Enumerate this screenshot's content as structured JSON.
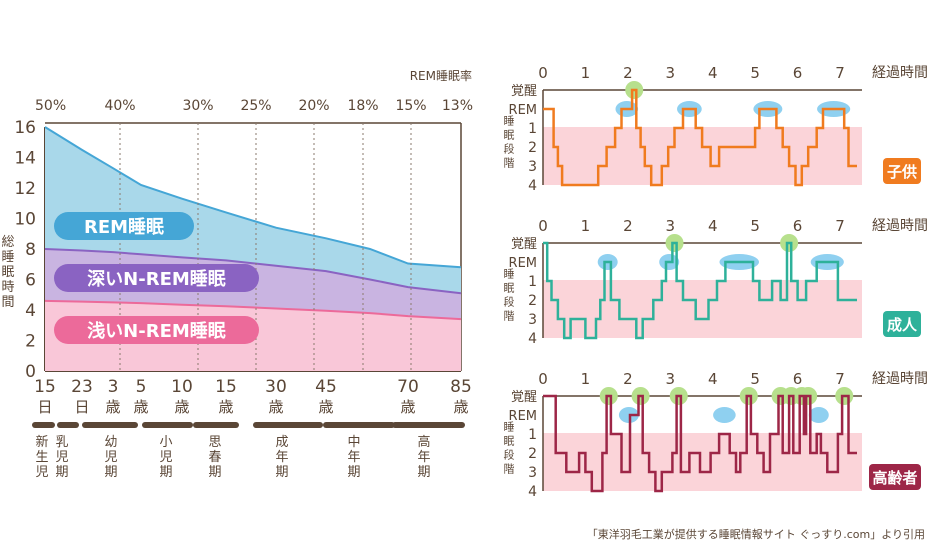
{
  "colors": {
    "rem": "#a9d8ea",
    "deep": "#c9b4e1",
    "light": "#f9c7d8",
    "rem_line": "#45a6d6",
    "deep_line": "#8a63c2",
    "light_line": "#ec6a9a",
    "axis": "#5a4636",
    "child": "#f07b1f",
    "adult": "#2eb19a",
    "elderly": "#9d2647",
    "sleep_band": "#fbd4d9",
    "green_mark": "#b7e08d",
    "blue_mark": "#8fd0f0"
  },
  "chart_data": [
    {
      "type": "area",
      "stacked": true,
      "ylabel": "総睡眠時間",
      "ylim": [
        0,
        16
      ],
      "y_ticks": [
        "0",
        "2",
        "4",
        "6",
        "8",
        "10",
        "12",
        "14",
        "16"
      ],
      "top_axis_title": "REM睡眠率",
      "rem_rate_labels": [
        "50%",
        "40%",
        "30%",
        "25%",
        "20%",
        "18%",
        "15%",
        "13%"
      ],
      "age_labels": [
        "15日",
        "23日",
        "3歳",
        "5歳",
        "10歳",
        "15歳",
        "30歳",
        "45歳",
        "70歳",
        "85歳"
      ],
      "life_stages": [
        "新生児",
        "乳児期",
        "幼児期",
        "小児期",
        "思春期",
        "成年期",
        "中年期",
        "高年期"
      ],
      "series": [
        {
          "name": "浅いN-REM睡眠",
          "values": [
            4.6,
            4.55,
            4.5,
            4.45,
            4.35,
            4.25,
            4.1,
            3.95,
            3.8,
            3.6,
            3.4
          ]
        },
        {
          "name": "深いN-REM睡眠",
          "values": [
            3.4,
            3.35,
            3.3,
            3.2,
            3.1,
            3.0,
            2.8,
            2.6,
            2.2,
            1.9,
            1.7
          ]
        },
        {
          "name": "REM睡眠",
          "values": [
            8.0,
            6.6,
            5.5,
            4.55,
            3.85,
            3.15,
            2.5,
            2.15,
            2.0,
            1.55,
            1.7
          ]
        }
      ]
    },
    {
      "type": "line",
      "xlabel": "経過時間",
      "x_ticks": [
        "0",
        "1",
        "2",
        "3",
        "4",
        "5",
        "6",
        "7"
      ],
      "y_categories": [
        "覚醒",
        "REM",
        "1",
        "2",
        "3",
        "4"
      ],
      "y_side_label": "睡眠段階",
      "panels": [
        {
          "label": "子供",
          "points": [
            [
              0,
              1
            ],
            [
              0.25,
              1
            ],
            [
              0.25,
              3
            ],
            [
              0.35,
              3
            ],
            [
              0.35,
              4
            ],
            [
              0.45,
              4
            ],
            [
              0.45,
              5
            ],
            [
              1.3,
              5
            ],
            [
              1.3,
              4
            ],
            [
              1.5,
              4
            ],
            [
              1.5,
              3
            ],
            [
              1.7,
              3
            ],
            [
              1.7,
              2
            ],
            [
              1.85,
              2
            ],
            [
              1.85,
              1
            ],
            [
              2.1,
              1
            ],
            [
              2.1,
              0
            ],
            [
              2.2,
              0
            ],
            [
              2.2,
              2
            ],
            [
              2.3,
              2
            ],
            [
              2.3,
              3
            ],
            [
              2.4,
              3
            ],
            [
              2.4,
              4
            ],
            [
              2.55,
              4
            ],
            [
              2.55,
              5
            ],
            [
              2.8,
              5
            ],
            [
              2.8,
              4
            ],
            [
              2.95,
              4
            ],
            [
              2.95,
              3
            ],
            [
              3.1,
              3
            ],
            [
              3.1,
              2
            ],
            [
              3.3,
              2
            ],
            [
              3.3,
              1
            ],
            [
              3.6,
              1
            ],
            [
              3.6,
              2
            ],
            [
              3.75,
              2
            ],
            [
              3.75,
              3
            ],
            [
              3.95,
              3
            ],
            [
              3.95,
              4
            ],
            [
              4.15,
              4
            ],
            [
              4.15,
              3
            ],
            [
              5.0,
              3
            ],
            [
              5.0,
              2
            ],
            [
              5.1,
              2
            ],
            [
              5.1,
              1
            ],
            [
              5.5,
              1
            ],
            [
              5.5,
              2
            ],
            [
              5.65,
              2
            ],
            [
              5.65,
              3
            ],
            [
              5.8,
              3
            ],
            [
              5.8,
              4
            ],
            [
              5.95,
              4
            ],
            [
              5.95,
              5
            ],
            [
              6.1,
              5
            ],
            [
              6.1,
              4
            ],
            [
              6.25,
              4
            ],
            [
              6.25,
              3
            ],
            [
              6.45,
              3
            ],
            [
              6.45,
              2
            ],
            [
              6.6,
              2
            ],
            [
              6.6,
              1
            ],
            [
              7.1,
              1
            ],
            [
              7.1,
              2
            ],
            [
              7.2,
              2
            ],
            [
              7.2,
              4
            ],
            [
              7.4,
              4
            ]
          ],
          "rem_markers": [
            [
              1.85,
              2.1
            ],
            [
              3.3,
              3.6
            ],
            [
              5.1,
              5.5
            ],
            [
              6.6,
              7.1
            ]
          ],
          "wake_markers": [
            2.15
          ]
        },
        {
          "label": "成人",
          "points": [
            [
              0,
              0
            ],
            [
              0.1,
              0
            ],
            [
              0.1,
              2
            ],
            [
              0.2,
              2
            ],
            [
              0.2,
              3
            ],
            [
              0.35,
              3
            ],
            [
              0.35,
              4
            ],
            [
              0.5,
              4
            ],
            [
              0.5,
              5
            ],
            [
              0.65,
              5
            ],
            [
              0.65,
              4
            ],
            [
              1.0,
              4
            ],
            [
              1.0,
              5
            ],
            [
              1.25,
              5
            ],
            [
              1.25,
              4
            ],
            [
              1.35,
              4
            ],
            [
              1.35,
              3
            ],
            [
              1.45,
              3
            ],
            [
              1.45,
              1
            ],
            [
              1.6,
              1
            ],
            [
              1.6,
              3
            ],
            [
              1.8,
              3
            ],
            [
              1.8,
              4
            ],
            [
              2.2,
              4
            ],
            [
              2.2,
              5
            ],
            [
              2.35,
              5
            ],
            [
              2.35,
              4
            ],
            [
              2.6,
              4
            ],
            [
              2.6,
              3
            ],
            [
              2.8,
              3
            ],
            [
              2.8,
              2
            ],
            [
              2.9,
              2
            ],
            [
              2.9,
              1
            ],
            [
              3.05,
              1
            ],
            [
              3.05,
              0
            ],
            [
              3.15,
              0
            ],
            [
              3.15,
              2
            ],
            [
              3.3,
              2
            ],
            [
              3.3,
              3
            ],
            [
              3.6,
              3
            ],
            [
              3.6,
              4
            ],
            [
              3.9,
              4
            ],
            [
              3.9,
              3
            ],
            [
              4.1,
              3
            ],
            [
              4.1,
              2
            ],
            [
              4.3,
              2
            ],
            [
              4.3,
              1
            ],
            [
              4.95,
              1
            ],
            [
              4.95,
              2
            ],
            [
              5.1,
              2
            ],
            [
              5.1,
              3
            ],
            [
              5.4,
              3
            ],
            [
              5.4,
              2
            ],
            [
              5.6,
              2
            ],
            [
              5.6,
              3
            ],
            [
              5.75,
              3
            ],
            [
              5.75,
              0
            ],
            [
              5.85,
              0
            ],
            [
              5.85,
              2
            ],
            [
              6.0,
              2
            ],
            [
              6.0,
              3
            ],
            [
              6.2,
              3
            ],
            [
              6.2,
              2
            ],
            [
              6.45,
              2
            ],
            [
              6.45,
              1
            ],
            [
              6.95,
              1
            ],
            [
              6.95,
              3
            ],
            [
              7.4,
              3
            ]
          ],
          "rem_markers": [
            [
              1.45,
              1.6
            ],
            [
              2.9,
              3.05
            ],
            [
              4.3,
              4.95
            ],
            [
              6.45,
              6.95
            ]
          ],
          "wake_markers": [
            3.1,
            5.8
          ]
        },
        {
          "label": "高齢者",
          "points": [
            [
              0,
              0
            ],
            [
              0.3,
              0
            ],
            [
              0.3,
              3
            ],
            [
              0.55,
              3
            ],
            [
              0.55,
              4
            ],
            [
              0.85,
              4
            ],
            [
              0.85,
              3
            ],
            [
              1.0,
              3
            ],
            [
              1.0,
              4
            ],
            [
              1.15,
              4
            ],
            [
              1.15,
              5
            ],
            [
              1.4,
              5
            ],
            [
              1.4,
              3
            ],
            [
              1.5,
              3
            ],
            [
              1.5,
              0
            ],
            [
              1.6,
              0
            ],
            [
              1.6,
              2
            ],
            [
              1.85,
              2
            ],
            [
              1.85,
              4
            ],
            [
              2.05,
              4
            ],
            [
              2.05,
              1
            ],
            [
              2.25,
              1
            ],
            [
              2.25,
              0
            ],
            [
              2.35,
              0
            ],
            [
              2.35,
              3
            ],
            [
              2.5,
              3
            ],
            [
              2.5,
              4
            ],
            [
              2.65,
              4
            ],
            [
              2.65,
              5
            ],
            [
              2.8,
              5
            ],
            [
              2.8,
              4
            ],
            [
              3.05,
              4
            ],
            [
              3.05,
              3
            ],
            [
              3.15,
              3
            ],
            [
              3.15,
              0
            ],
            [
              3.25,
              0
            ],
            [
              3.25,
              4
            ],
            [
              3.45,
              4
            ],
            [
              3.45,
              3
            ],
            [
              3.7,
              3
            ],
            [
              3.7,
              4
            ],
            [
              3.95,
              4
            ],
            [
              3.95,
              3
            ],
            [
              4.15,
              3
            ],
            [
              4.15,
              2
            ],
            [
              4.4,
              2
            ],
            [
              4.4,
              3
            ],
            [
              4.55,
              3
            ],
            [
              4.55,
              4
            ],
            [
              4.65,
              4
            ],
            [
              4.65,
              3
            ],
            [
              4.8,
              3
            ],
            [
              4.8,
              0
            ],
            [
              4.9,
              0
            ],
            [
              4.9,
              2
            ],
            [
              5.05,
              2
            ],
            [
              5.05,
              3
            ],
            [
              5.2,
              3
            ],
            [
              5.2,
              4
            ],
            [
              5.35,
              4
            ],
            [
              5.35,
              2
            ],
            [
              5.55,
              2
            ],
            [
              5.55,
              0
            ],
            [
              5.65,
              0
            ],
            [
              5.65,
              3
            ],
            [
              5.8,
              3
            ],
            [
              5.8,
              0
            ],
            [
              5.9,
              0
            ],
            [
              5.9,
              3
            ],
            [
              6.05,
              3
            ],
            [
              6.05,
              0
            ],
            [
              6.15,
              0
            ],
            [
              6.15,
              2
            ],
            [
              6.2,
              2
            ],
            [
              6.2,
              0
            ],
            [
              6.3,
              0
            ],
            [
              6.3,
              3
            ],
            [
              6.45,
              3
            ],
            [
              6.45,
              2
            ],
            [
              6.55,
              2
            ],
            [
              6.55,
              3
            ],
            [
              6.7,
              3
            ],
            [
              6.7,
              4
            ],
            [
              6.95,
              4
            ],
            [
              6.95,
              2
            ],
            [
              7.05,
              2
            ],
            [
              7.05,
              0
            ],
            [
              7.2,
              0
            ],
            [
              7.2,
              3
            ],
            [
              7.4,
              3
            ]
          ],
          "rem_markers": [
            [
              1.95,
              2.1
            ],
            [
              4.15,
              4.4
            ],
            [
              6.45,
              6.55
            ]
          ],
          "wake_markers": [
            1.55,
            2.3,
            3.2,
            4.85,
            5.6,
            5.85,
            6.1,
            6.25,
            7.1
          ]
        }
      ]
    }
  ],
  "footer": {
    "citation": "「東洋羽毛工業が提供する睡眠情報サイト ぐっすり.com」より引用"
  }
}
